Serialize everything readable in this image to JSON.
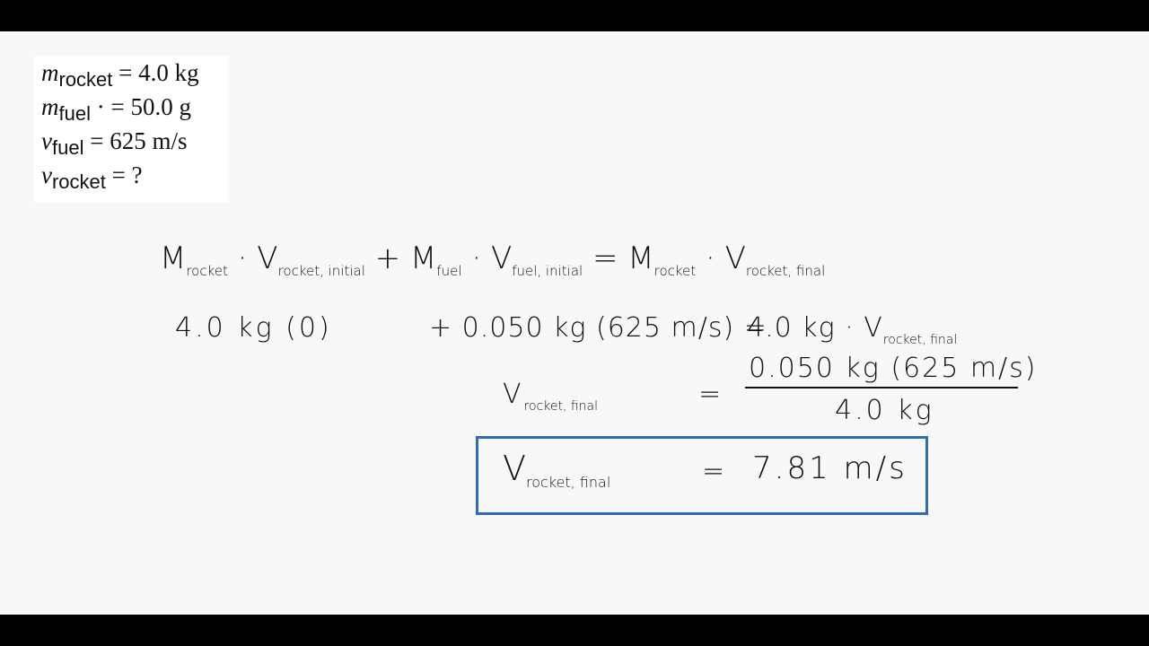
{
  "givens": [
    {
      "symbol": "m",
      "subscript": "rocket",
      "rest": " = 4.0 kg"
    },
    {
      "symbol": "m",
      "subscript": "fuel",
      "rest": " · = 50.0  g"
    },
    {
      "symbol": "v",
      "subscript": "fuel",
      "rest": " = 625 m/s"
    },
    {
      "symbol": "v",
      "subscript": "rocket",
      "rest": " = ?"
    }
  ],
  "equation1": {
    "t1": "M",
    "s1": "rocket",
    "t2": " · V",
    "s2": "rocket, initial",
    "t3": "  +  M",
    "s3": "fuel",
    "t4": " · V",
    "s4": "fuel, initial",
    "t5": "  =  M",
    "s5": "rocket",
    "t6": " · V",
    "s6": "rocket, final"
  },
  "equation2": {
    "left": "4.0 kg (0)",
    "middle": "+ 0.050 kg (625 m/s) =",
    "right": "4.0 kg · V",
    "right_sub": "rocket, final"
  },
  "equation3": {
    "lhs": "V",
    "lhs_sub": "rocket, final",
    "eq": "=",
    "numerator": "0.050 kg (625 m/s)",
    "denominator": "4.0 kg"
  },
  "result": {
    "lhs": "V",
    "lhs_sub": "rocket, final",
    "eq": "=",
    "value": "7.81  m/s"
  },
  "colors": {
    "box_border": "#2e6db4",
    "board": "#f8f8fa"
  }
}
